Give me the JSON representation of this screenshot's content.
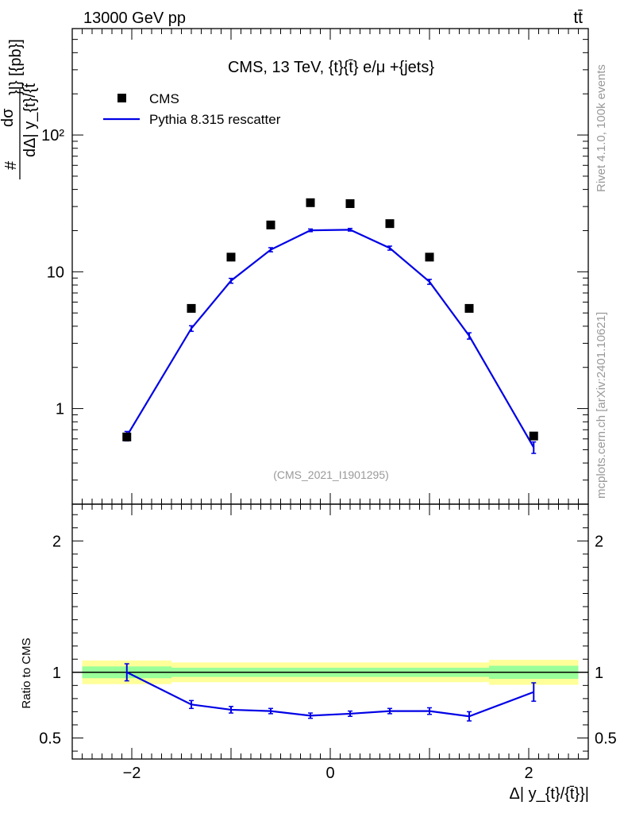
{
  "header": {
    "left": "13000 GeV pp",
    "right": "tt̄"
  },
  "side": {
    "rivet": "Rivet 4.1.0,  100k events",
    "mcplots": "mcplots.cern.ch [arXiv:2401.10621]"
  },
  "colors": {
    "mc": "#0000e6",
    "data": "#000000",
    "band_yellow": "#ffff99",
    "band_green": "#99ff99",
    "watermark": "#999999"
  },
  "chart_data": [
    {
      "type": "scatter",
      "title": "CMS, 13 TeV, {t}{t̄} e/μ +{jets}",
      "ylabel_num": "dσ",
      "ylabel_den": "dΔ| y_{t}/{t̄",
      "ylabel_extra": "}|} [{pb}]",
      "ylabel_hash": "#",
      "yscale": "log",
      "ylim": [
        0.2,
        600
      ],
      "xlim": [
        -2.6,
        2.6
      ],
      "yticks": [
        1,
        10,
        100
      ],
      "ytick_labels": [
        "1",
        "10",
        "10²"
      ],
      "watermark": "(CMS_2021_I1901295)",
      "legend": [
        {
          "label": "CMS",
          "marker": "square"
        },
        {
          "label": "Pythia 8.315 rescatter",
          "marker": "line"
        }
      ],
      "data": {
        "name": "CMS",
        "x": [
          -2.05,
          -1.4,
          -1.0,
          -0.6,
          -0.2,
          0.2,
          0.6,
          1.0,
          1.4,
          2.05
        ],
        "y": [
          0.62,
          5.4,
          12.8,
          22,
          32,
          31.5,
          22.5,
          12.8,
          5.4,
          0.63
        ]
      },
      "series": [
        {
          "name": "Pythia 8.315 rescatter",
          "x": [
            -2.05,
            -1.4,
            -1.0,
            -0.6,
            -0.2,
            0.2,
            0.6,
            1.0,
            1.4,
            2.05
          ],
          "y": [
            0.63,
            3.85,
            8.6,
            14.5,
            20.1,
            20.3,
            14.9,
            8.45,
            3.4,
            0.52
          ],
          "err": [
            0.05,
            0.18,
            0.35,
            0.5,
            0.45,
            0.45,
            0.5,
            0.35,
            0.18,
            0.05
          ]
        }
      ]
    },
    {
      "type": "line",
      "ylabel": "Ratio to CMS",
      "xlabel": "Δ| y_{t}/{t̄}}|",
      "ylim": [
        0.34,
        2.28
      ],
      "xlim": [
        -2.6,
        2.6
      ],
      "yticks": [
        0.5,
        1,
        2
      ],
      "ytick_labels": [
        "0.5",
        "1",
        "2"
      ],
      "xticks": [
        -2,
        0,
        2
      ],
      "xtick_labels": [
        "−2",
        "0",
        "2"
      ],
      "bands": {
        "edges": [
          -2.5,
          -1.6,
          1.6,
          2.5
        ],
        "yellow_half": [
          0.09,
          0.075,
          0.095
        ],
        "green_half": [
          0.045,
          0.035,
          0.05
        ]
      },
      "series": [
        {
          "name": "Pythia 8.315 rescatter",
          "x": [
            -2.05,
            -1.4,
            -1.0,
            -0.6,
            -0.2,
            0.2,
            0.6,
            1.0,
            1.4,
            2.05
          ],
          "y": [
            1.0,
            0.755,
            0.715,
            0.705,
            0.67,
            0.685,
            0.705,
            0.705,
            0.665,
            0.85
          ],
          "err": [
            0.065,
            0.03,
            0.025,
            0.02,
            0.02,
            0.02,
            0.02,
            0.025,
            0.035,
            0.07
          ]
        }
      ]
    }
  ]
}
